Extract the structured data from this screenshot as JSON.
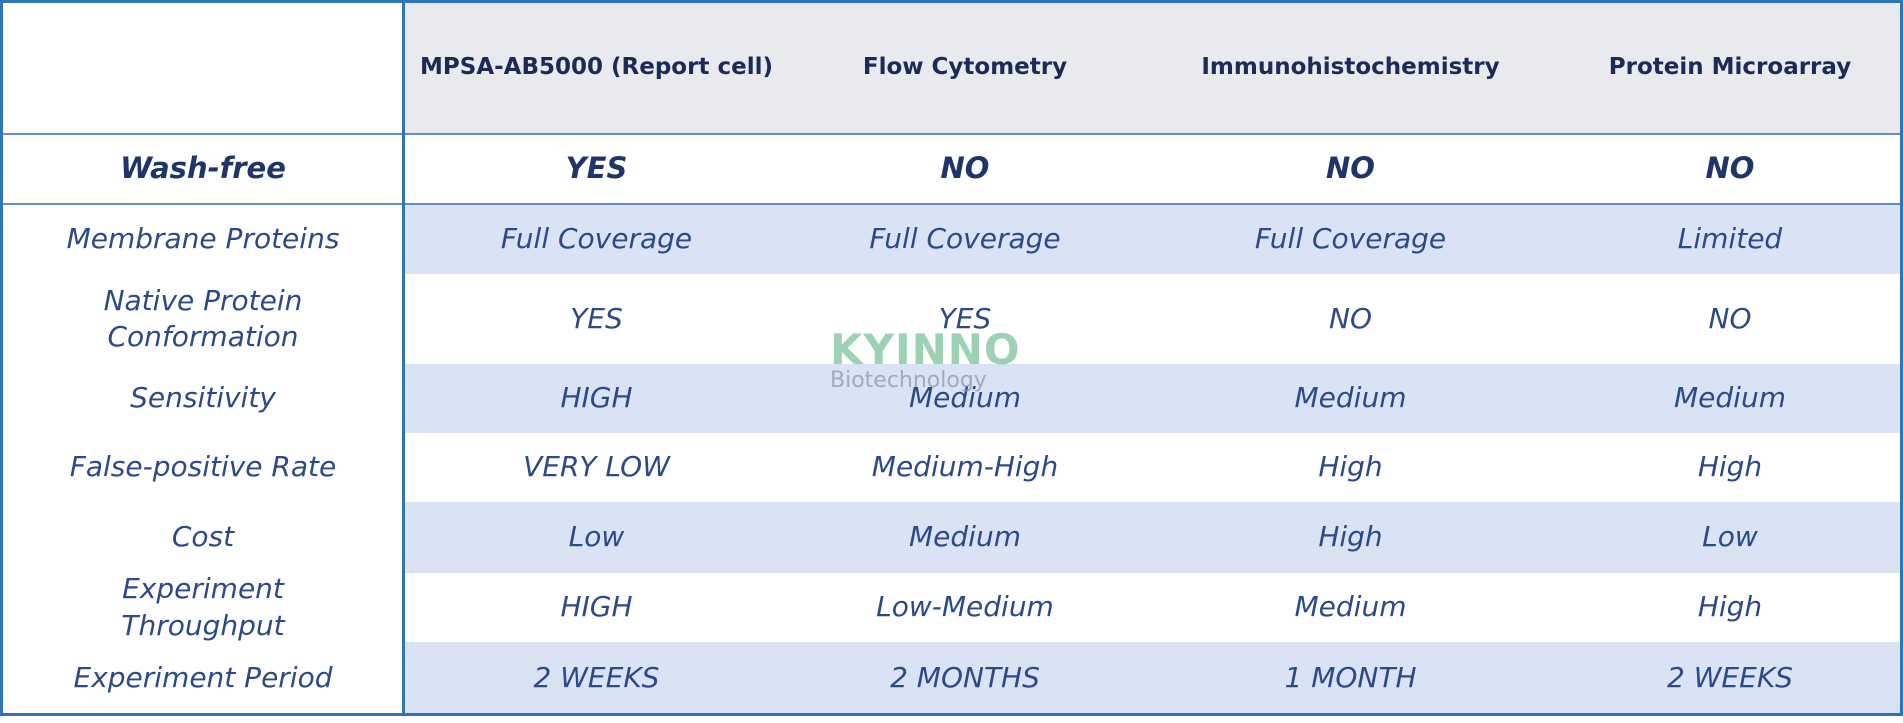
{
  "table": {
    "columns": [
      "MPSA-AB5000 (Report cell)",
      "Flow Cytometry",
      "Immunohistochemistry",
      "Protein Microarray"
    ],
    "rows": [
      {
        "label": "Wash-free",
        "cells": [
          "YES",
          "NO",
          "NO",
          "NO"
        ]
      },
      {
        "label": "Membrane Proteins",
        "cells": [
          "Full Coverage",
          "Full Coverage",
          "Full Coverage",
          "Limited"
        ]
      },
      {
        "label": "Native Protein Conformation",
        "cells": [
          "YES",
          "YES",
          "NO",
          "NO"
        ]
      },
      {
        "label": "Sensitivity",
        "cells": [
          "HIGH",
          "Medium",
          "Medium",
          "Medium"
        ]
      },
      {
        "label": "False-positive Rate",
        "cells": [
          "VERY LOW",
          "Medium-High",
          "High",
          "High"
        ]
      },
      {
        "label": "Cost",
        "cells": [
          "Low",
          "Medium",
          "High",
          "Low"
        ]
      },
      {
        "label": "Experiment Throughput",
        "cells": [
          "HIGH",
          "Low-Medium",
          "Medium",
          "High"
        ]
      },
      {
        "label": "Experiment Period",
        "cells": [
          "2 WEEKS",
          "2 MONTHS",
          "1 MONTH",
          "2 WEEKS"
        ]
      }
    ]
  },
  "watermark": {
    "brand": "KYINNO",
    "subtitle": "Biotechnology"
  }
}
